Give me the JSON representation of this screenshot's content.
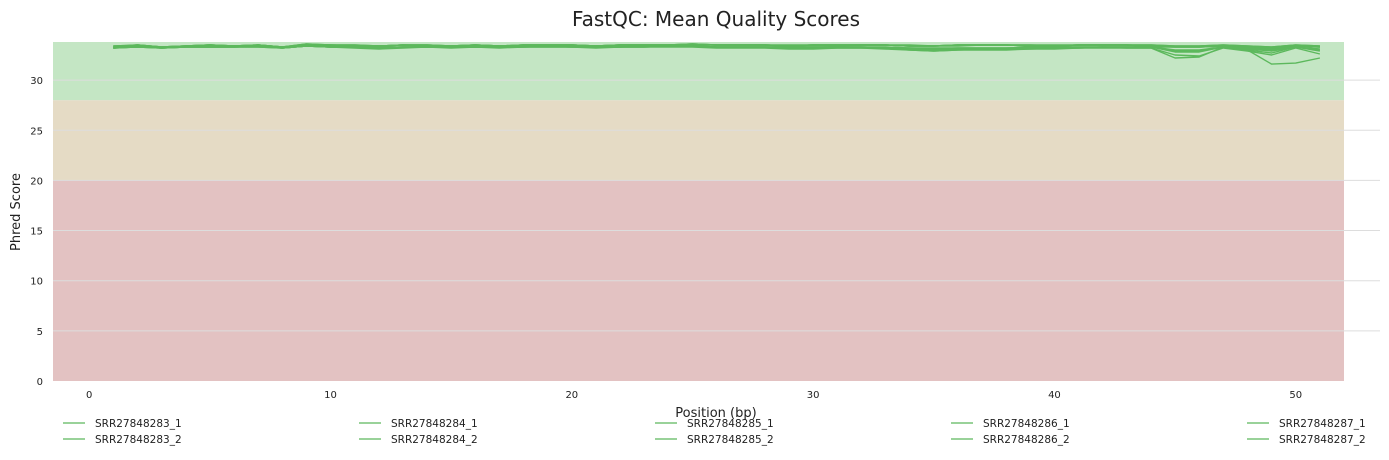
{
  "chart_data": {
    "type": "line",
    "title": "FastQC: Mean Quality Scores",
    "xlabel": "Position (bp)",
    "ylabel": "Phred Score",
    "xlim": [
      -1.5,
      52
    ],
    "ylim": [
      0,
      33.8
    ],
    "xticks": [
      0,
      10,
      20,
      30,
      40,
      50
    ],
    "yticks": [
      0,
      5,
      10,
      15,
      20,
      25,
      30
    ],
    "grid": true,
    "legend_position": "bottom",
    "zones": [
      {
        "from": 0,
        "to": 20,
        "color": "#e3c2c2"
      },
      {
        "from": 20,
        "to": 28,
        "color": "#e5dbc5"
      },
      {
        "from": 28,
        "to": 33.8,
        "color": "#c4e6c4"
      }
    ],
    "line_color": "#5cb85c",
    "x": [
      1,
      2,
      3,
      4,
      5,
      6,
      7,
      8,
      9,
      10,
      11,
      12,
      13,
      14,
      15,
      16,
      17,
      18,
      19,
      20,
      21,
      22,
      23,
      24,
      25,
      26,
      27,
      28,
      29,
      30,
      31,
      32,
      33,
      34,
      35,
      36,
      37,
      38,
      39,
      40,
      41,
      42,
      43,
      44,
      45,
      46,
      47,
      48,
      49,
      50,
      51
    ],
    "series": [
      {
        "name": "SRR27848283_1",
        "values": [
          33.3,
          33.4,
          33.3,
          33.4,
          33.5,
          33.4,
          33.5,
          33.3,
          33.5,
          33.4,
          33.4,
          33.4,
          33.5,
          33.5,
          33.4,
          33.5,
          33.4,
          33.5,
          33.5,
          33.5,
          33.4,
          33.5,
          33.5,
          33.5,
          33.6,
          33.5,
          33.5,
          33.5,
          33.4,
          33.5,
          33.5,
          33.5,
          33.5,
          33.4,
          33.4,
          33.5,
          33.5,
          33.5,
          33.4,
          33.4,
          33.5,
          33.5,
          33.5,
          33.3,
          33.3,
          33.3,
          33.4,
          33.2,
          33.1,
          33.4,
          33.3
        ]
      },
      {
        "name": "SRR27848283_2",
        "values": [
          33.2,
          33.3,
          33.2,
          33.3,
          33.3,
          33.3,
          33.4,
          33.2,
          33.4,
          33.3,
          33.3,
          33.2,
          33.3,
          33.3,
          33.3,
          33.3,
          33.3,
          33.3,
          33.4,
          33.3,
          33.3,
          33.3,
          33.3,
          33.4,
          33.4,
          33.3,
          33.3,
          33.3,
          33.3,
          33.3,
          33.3,
          33.3,
          33.2,
          33.0,
          32.9,
          33.0,
          33.1,
          33.1,
          33.1,
          33.2,
          33.2,
          33.3,
          33.2,
          33.2,
          32.2,
          32.3,
          33.3,
          33.0,
          31.6,
          31.7,
          32.2
        ]
      },
      {
        "name": "SRR27848284_1",
        "values": [
          33.4,
          33.5,
          33.3,
          33.4,
          33.5,
          33.4,
          33.5,
          33.3,
          33.6,
          33.5,
          33.5,
          33.4,
          33.5,
          33.5,
          33.4,
          33.5,
          33.4,
          33.5,
          33.5,
          33.5,
          33.4,
          33.5,
          33.5,
          33.5,
          33.6,
          33.5,
          33.5,
          33.5,
          33.4,
          33.5,
          33.5,
          33.5,
          33.5,
          33.4,
          33.4,
          33.5,
          33.5,
          33.5,
          33.5,
          33.4,
          33.5,
          33.5,
          33.5,
          33.5,
          33.4,
          33.4,
          33.5,
          33.4,
          33.3,
          33.5,
          33.4
        ]
      },
      {
        "name": "SRR27848284_2",
        "values": [
          33.2,
          33.3,
          33.2,
          33.3,
          33.3,
          33.3,
          33.3,
          33.2,
          33.4,
          33.3,
          33.2,
          33.1,
          33.2,
          33.3,
          33.2,
          33.3,
          33.2,
          33.3,
          33.3,
          33.3,
          33.2,
          33.3,
          33.3,
          33.3,
          33.3,
          33.2,
          33.2,
          33.2,
          33.1,
          33.1,
          33.2,
          33.2,
          33.1,
          33.0,
          32.9,
          33.0,
          33.0,
          33.0,
          33.1,
          33.1,
          33.2,
          33.2,
          33.2,
          33.2,
          32.5,
          32.4,
          33.2,
          32.9,
          32.5,
          33.2,
          32.6
        ]
      },
      {
        "name": "SRR27848285_1",
        "values": [
          33.3,
          33.5,
          33.3,
          33.4,
          33.5,
          33.4,
          33.5,
          33.3,
          33.5,
          33.5,
          33.4,
          33.4,
          33.5,
          33.4,
          33.4,
          33.5,
          33.4,
          33.5,
          33.5,
          33.5,
          33.4,
          33.5,
          33.5,
          33.5,
          33.5,
          33.5,
          33.5,
          33.5,
          33.4,
          33.5,
          33.5,
          33.5,
          33.5,
          33.4,
          33.4,
          33.5,
          33.5,
          33.5,
          33.4,
          33.4,
          33.5,
          33.5,
          33.5,
          33.4,
          33.3,
          33.3,
          33.4,
          33.3,
          33.2,
          33.4,
          33.3
        ]
      },
      {
        "name": "SRR27848285_2",
        "values": [
          33.2,
          33.4,
          33.2,
          33.3,
          33.3,
          33.3,
          33.4,
          33.2,
          33.4,
          33.3,
          33.3,
          33.2,
          33.3,
          33.3,
          33.3,
          33.3,
          33.3,
          33.3,
          33.4,
          33.3,
          33.3,
          33.3,
          33.4,
          33.4,
          33.4,
          33.3,
          33.3,
          33.3,
          33.3,
          33.3,
          33.3,
          33.3,
          33.2,
          33.2,
          33.1,
          33.2,
          33.2,
          33.2,
          33.2,
          33.3,
          33.3,
          33.3,
          33.3,
          33.3,
          32.8,
          32.8,
          33.3,
          33.0,
          32.7,
          33.3,
          32.9
        ]
      },
      {
        "name": "SRR27848286_1",
        "values": [
          33.3,
          33.5,
          33.3,
          33.4,
          33.5,
          33.4,
          33.5,
          33.3,
          33.5,
          33.5,
          33.4,
          33.4,
          33.5,
          33.4,
          33.4,
          33.5,
          33.4,
          33.5,
          33.5,
          33.5,
          33.4,
          33.5,
          33.5,
          33.5,
          33.5,
          33.5,
          33.5,
          33.5,
          33.4,
          33.5,
          33.4,
          33.5,
          33.5,
          33.4,
          33.4,
          33.4,
          33.5,
          33.5,
          33.4,
          33.4,
          33.5,
          33.5,
          33.5,
          33.4,
          33.3,
          33.3,
          33.4,
          33.3,
          33.2,
          33.4,
          33.3
        ]
      },
      {
        "name": "SRR27848286_2",
        "values": [
          33.2,
          33.3,
          33.2,
          33.3,
          33.3,
          33.3,
          33.3,
          33.2,
          33.4,
          33.3,
          33.3,
          33.2,
          33.3,
          33.3,
          33.3,
          33.3,
          33.3,
          33.3,
          33.3,
          33.3,
          33.3,
          33.3,
          33.3,
          33.4,
          33.4,
          33.3,
          33.3,
          33.3,
          33.2,
          33.2,
          33.2,
          33.2,
          33.2,
          33.1,
          33.0,
          33.1,
          33.1,
          33.1,
          33.2,
          33.2,
          33.2,
          33.3,
          33.3,
          33.3,
          32.9,
          32.9,
          33.3,
          33.1,
          32.9,
          33.3,
          33.0
        ]
      },
      {
        "name": "SRR27848287_1",
        "values": [
          33.4,
          33.5,
          33.3,
          33.4,
          33.5,
          33.4,
          33.5,
          33.3,
          33.6,
          33.5,
          33.5,
          33.4,
          33.5,
          33.5,
          33.4,
          33.5,
          33.4,
          33.5,
          33.5,
          33.5,
          33.4,
          33.5,
          33.5,
          33.5,
          33.6,
          33.5,
          33.5,
          33.5,
          33.5,
          33.5,
          33.5,
          33.5,
          33.5,
          33.5,
          33.4,
          33.5,
          33.5,
          33.5,
          33.5,
          33.5,
          33.5,
          33.5,
          33.5,
          33.5,
          33.4,
          33.4,
          33.5,
          33.4,
          33.3,
          33.5,
          33.4
        ]
      },
      {
        "name": "SRR27848287_2",
        "values": [
          33.2,
          33.4,
          33.2,
          33.3,
          33.3,
          33.3,
          33.4,
          33.2,
          33.4,
          33.3,
          33.3,
          33.3,
          33.3,
          33.3,
          33.3,
          33.3,
          33.3,
          33.4,
          33.4,
          33.4,
          33.3,
          33.3,
          33.4,
          33.4,
          33.4,
          33.3,
          33.3,
          33.3,
          33.3,
          33.3,
          33.3,
          33.3,
          33.3,
          33.2,
          33.2,
          33.2,
          33.2,
          33.2,
          33.3,
          33.3,
          33.3,
          33.3,
          33.3,
          33.3,
          33.0,
          33.0,
          33.3,
          33.2,
          33.0,
          33.3,
          33.1
        ]
      }
    ]
  }
}
